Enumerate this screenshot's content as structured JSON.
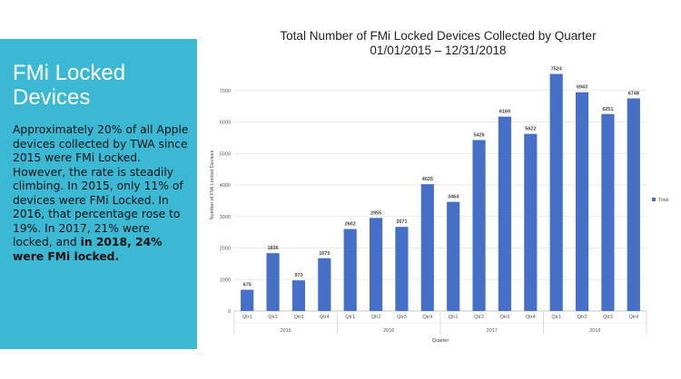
{
  "panel": {
    "title": "FMi Locked Devices",
    "body_text": "Approximately 20% of all Apple devices collected by TWA since 2015 were FMi Locked. However, the rate is steadily climbing. In 2015, only 11% of devices were FMi Locked. In 2016, that percentage rose to 19%. In 2017, 21% were locked, and ",
    "body_bold": "in 2018, 24% were FMi locked."
  },
  "colors": {
    "panel_bg": "#3bb8d3",
    "bar": "#4670c8",
    "grid": "#e3e3e3"
  },
  "chart_data": {
    "type": "bar",
    "title": "Total Number of FMi Locked Devices Collected by Quarter",
    "subtitle": "01/01/2015 – 12/31/2018",
    "xlabel": "Quarter",
    "ylabel": "Number of FMi Locked Devices",
    "ylim": [
      0,
      8000
    ],
    "yticks": [
      0,
      1000,
      2000,
      3000,
      4000,
      5000,
      6000,
      7000
    ],
    "grid": true,
    "legend": "right",
    "series": [
      {
        "name": "Total",
        "values": [
          675,
          1836,
          973,
          1675,
          2602,
          2955,
          2671,
          4025,
          3464,
          5426,
          6169,
          5622,
          7524,
          6943,
          6251,
          6748
        ]
      }
    ],
    "categories": [
      "Qtr1",
      "Qtr2",
      "Qtr3",
      "Qtr4",
      "Qtr1",
      "Qtr2",
      "Qtr3",
      "Qtr4",
      "Qtr1",
      "Qtr2",
      "Qtr3",
      "Qtr4",
      "Qtr1",
      "Qtr2",
      "Qtr3",
      "Qtr4"
    ],
    "groups": [
      "2015",
      "2016",
      "2017",
      "2018"
    ]
  }
}
